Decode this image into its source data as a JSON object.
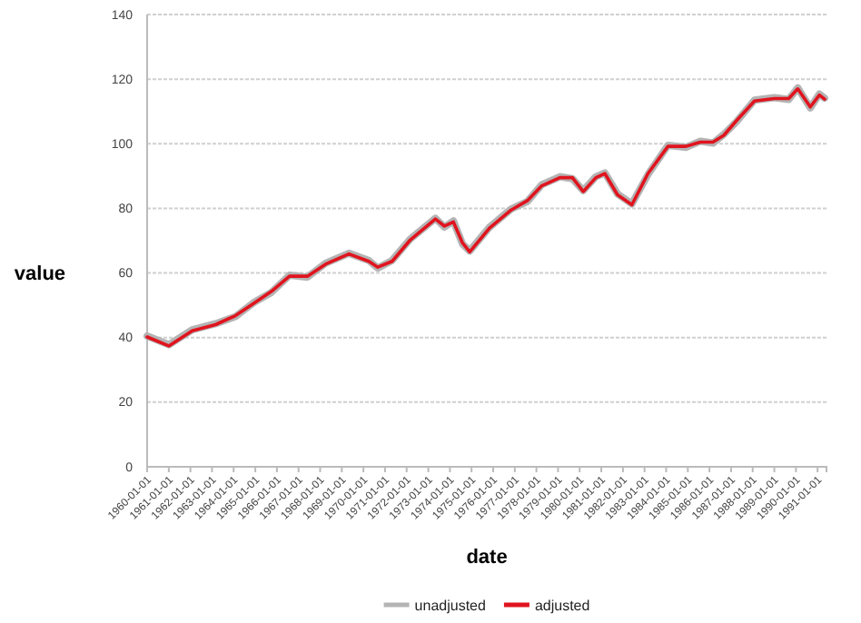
{
  "chart_data": {
    "type": "line",
    "xlabel": "date",
    "ylabel": "value",
    "x": [
      "1960-01",
      "1961-01",
      "1962-02",
      "1963-03",
      "1964-02",
      "1964-12",
      "1965-10",
      "1966-08",
      "1967-06",
      "1968-04",
      "1969-05",
      "1970-04",
      "1970-09",
      "1971-05",
      "1972-03",
      "1973-05",
      "1973-10",
      "1974-03",
      "1974-08",
      "1974-12",
      "1975-11",
      "1976-11",
      "1977-08",
      "1978-04",
      "1979-02",
      "1979-09",
      "1980-03",
      "1980-10",
      "1981-03",
      "1981-10",
      "1982-06",
      "1983-03",
      "1984-02",
      "1984-12",
      "1985-08",
      "1986-03",
      "1986-09",
      "1987-04",
      "1988-02",
      "1989-01",
      "1989-09",
      "1990-02",
      "1990-09",
      "1991-02",
      "1991-05"
    ],
    "series": [
      {
        "name": "unadjusted",
        "color": "#b4b4b4",
        "values": [
          40.5,
          37.8,
          42.4,
          44.3,
          46.5,
          50.8,
          54.0,
          59.3,
          58.7,
          63.0,
          66.1,
          63.9,
          61.5,
          63.9,
          70.5,
          76.9,
          74.2,
          76.1,
          69.0,
          66.8,
          74.2,
          79.8,
          82.1,
          87.3,
          89.8,
          89.2,
          85.5,
          89.8,
          91.0,
          84.5,
          81.4,
          90.5,
          99.5,
          98.9,
          100.8,
          100.2,
          102.9,
          106.8,
          113.5,
          114.3,
          113.7,
          117.3,
          111.1,
          115.4,
          114.1
        ]
      },
      {
        "name": "adjusted",
        "color": "#e0141e",
        "values": [
          40.2,
          37.4,
          42.1,
          44.0,
          46.8,
          50.5,
          54.3,
          59.0,
          59.0,
          62.7,
          65.9,
          63.6,
          61.8,
          63.6,
          70.2,
          76.7,
          74.5,
          75.8,
          69.3,
          66.5,
          73.9,
          79.5,
          82.4,
          87.0,
          89.5,
          89.5,
          85.2,
          89.5,
          90.8,
          84.2,
          81.1,
          90.8,
          99.2,
          99.2,
          100.5,
          100.5,
          102.6,
          107.1,
          113.2,
          114.0,
          114.0,
          117.0,
          111.4,
          115.1,
          113.8
        ]
      }
    ],
    "xlim": [
      "1960-01-01",
      "1991-06-01"
    ],
    "xticks": [
      "1960-01-01",
      "1961-01-01",
      "1962-01-01",
      "1963-01-01",
      "1964-01-01",
      "1965-01-01",
      "1966-01-01",
      "1967-01-01",
      "1968-01-01",
      "1969-01-01",
      "1970-01-01",
      "1971-01-01",
      "1972-01-01",
      "1973-01-01",
      "1974-01-01",
      "1975-01-01",
      "1976-01-01",
      "1977-01-01",
      "1978-01-01",
      "1979-01-01",
      "1980-01-01",
      "1981-01-01",
      "1982-01-01",
      "1983-01-01",
      "1984-01-01",
      "1985-01-01",
      "1986-01-01",
      "1987-01-01",
      "1988-01-01",
      "1989-01-01",
      "1990-01-01",
      "1991-01-01"
    ],
    "ylim": [
      0,
      140
    ],
    "yticks": [
      0,
      20,
      40,
      60,
      80,
      100,
      120,
      140
    ],
    "grid": "y",
    "legend": "bottom",
    "marker": "none",
    "line_style": "solid"
  }
}
